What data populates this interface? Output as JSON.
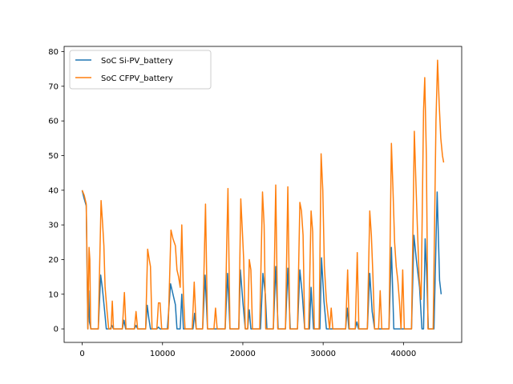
{
  "chart_data": {
    "type": "line",
    "title": "",
    "xlabel": "",
    "ylabel": "",
    "xlim": [
      -2250,
      47250
    ],
    "ylim": [
      -3.9,
      81.5
    ],
    "xticks": [
      0,
      10000,
      20000,
      30000,
      40000
    ],
    "yticks": [
      0,
      10,
      20,
      30,
      40,
      50,
      60,
      70,
      80
    ],
    "grid": false,
    "legend_position": "top-left",
    "series": [
      {
        "name": "SoC Si-PV_battery",
        "color": "#1f77b4",
        "points": [
          [
            0,
            40
          ],
          [
            200,
            38
          ],
          [
            500,
            35.5
          ],
          [
            700,
            0
          ],
          [
            800,
            11
          ],
          [
            900,
            2
          ],
          [
            1100,
            0
          ],
          [
            2000,
            0
          ],
          [
            2300,
            15.5
          ],
          [
            2500,
            12
          ],
          [
            2800,
            5
          ],
          [
            3000,
            0
          ],
          [
            3500,
            0
          ],
          [
            3700,
            1
          ],
          [
            3900,
            0
          ],
          [
            5000,
            0
          ],
          [
            5200,
            2.5
          ],
          [
            5400,
            0
          ],
          [
            6500,
            0
          ],
          [
            6700,
            1
          ],
          [
            6900,
            0
          ],
          [
            7900,
            0
          ],
          [
            8100,
            6.8
          ],
          [
            8300,
            3
          ],
          [
            8500,
            0
          ],
          [
            9300,
            0
          ],
          [
            9500,
            0.5
          ],
          [
            9700,
            0
          ],
          [
            10600,
            0
          ],
          [
            11000,
            13
          ],
          [
            11300,
            10
          ],
          [
            11600,
            7
          ],
          [
            11800,
            0
          ],
          [
            12200,
            0
          ],
          [
            12400,
            10
          ],
          [
            12600,
            0
          ],
          [
            13800,
            0
          ],
          [
            14000,
            4.5
          ],
          [
            14200,
            0
          ],
          [
            15000,
            0
          ],
          [
            15300,
            15.5
          ],
          [
            15600,
            0
          ],
          [
            17800,
            0
          ],
          [
            18100,
            16
          ],
          [
            18400,
            0
          ],
          [
            19500,
            0
          ],
          [
            19700,
            17
          ],
          [
            20000,
            8
          ],
          [
            20300,
            0
          ],
          [
            20600,
            0
          ],
          [
            20800,
            5.5
          ],
          [
            21000,
            0
          ],
          [
            22200,
            0
          ],
          [
            22500,
            16
          ],
          [
            22800,
            10
          ],
          [
            23000,
            0
          ],
          [
            23800,
            0
          ],
          [
            24100,
            18
          ],
          [
            24400,
            0
          ],
          [
            25300,
            0
          ],
          [
            25600,
            17.5
          ],
          [
            25900,
            0
          ],
          [
            26800,
            0
          ],
          [
            27100,
            17
          ],
          [
            27400,
            10
          ],
          [
            27700,
            0
          ],
          [
            28300,
            0
          ],
          [
            28500,
            12
          ],
          [
            28800,
            0
          ],
          [
            29600,
            0
          ],
          [
            29800,
            20.5
          ],
          [
            30100,
            8
          ],
          [
            30400,
            0
          ],
          [
            32800,
            0
          ],
          [
            33000,
            6
          ],
          [
            33200,
            0
          ],
          [
            34000,
            0
          ],
          [
            34200,
            2
          ],
          [
            34400,
            0
          ],
          [
            35500,
            0
          ],
          [
            35800,
            16
          ],
          [
            36100,
            5
          ],
          [
            36400,
            0
          ],
          [
            38200,
            0
          ],
          [
            38500,
            23.5
          ],
          [
            38800,
            0
          ],
          [
            41000,
            0
          ],
          [
            41300,
            27
          ],
          [
            41600,
            20
          ],
          [
            42000,
            12
          ],
          [
            42300,
            0
          ],
          [
            42500,
            0
          ],
          [
            42700,
            26
          ],
          [
            42900,
            15
          ],
          [
            43100,
            0
          ],
          [
            43800,
            0
          ],
          [
            44200,
            39.5
          ],
          [
            44500,
            14
          ],
          [
            44700,
            10
          ]
        ]
      },
      {
        "name": "SoC CFPV_battery",
        "color": "#ff7f0e",
        "points": [
          [
            0,
            40
          ],
          [
            250,
            38.5
          ],
          [
            500,
            36
          ],
          [
            600,
            20
          ],
          [
            700,
            0
          ],
          [
            850,
            23.5
          ],
          [
            950,
            20
          ],
          [
            1050,
            0
          ],
          [
            2000,
            0
          ],
          [
            2350,
            37
          ],
          [
            2550,
            30
          ],
          [
            2700,
            24
          ],
          [
            2850,
            12
          ],
          [
            3100,
            5
          ],
          [
            3300,
            0
          ],
          [
            3600,
            0
          ],
          [
            3750,
            8
          ],
          [
            3900,
            0
          ],
          [
            5000,
            0
          ],
          [
            5250,
            10.5
          ],
          [
            5450,
            0
          ],
          [
            6500,
            0
          ],
          [
            6700,
            5
          ],
          [
            6900,
            0
          ],
          [
            7900,
            0
          ],
          [
            8150,
            23
          ],
          [
            8350,
            20
          ],
          [
            8500,
            18
          ],
          [
            8700,
            0
          ],
          [
            9300,
            0
          ],
          [
            9500,
            7.5
          ],
          [
            9700,
            7.5
          ],
          [
            9900,
            0
          ],
          [
            10700,
            0
          ],
          [
            11050,
            28.5
          ],
          [
            11300,
            26
          ],
          [
            11600,
            24
          ],
          [
            11800,
            17
          ],
          [
            12000,
            15
          ],
          [
            12200,
            12
          ],
          [
            12400,
            30
          ],
          [
            12600,
            10
          ],
          [
            12800,
            0
          ],
          [
            13700,
            0
          ],
          [
            13950,
            13.5
          ],
          [
            14200,
            0
          ],
          [
            15000,
            0
          ],
          [
            15350,
            36
          ],
          [
            15600,
            0
          ],
          [
            16400,
            0
          ],
          [
            16600,
            6
          ],
          [
            16800,
            0
          ],
          [
            17800,
            0
          ],
          [
            18000,
            25
          ],
          [
            18150,
            40.5
          ],
          [
            18400,
            0
          ],
          [
            19500,
            0
          ],
          [
            19750,
            37.5
          ],
          [
            19950,
            28
          ],
          [
            20100,
            20
          ],
          [
            20300,
            0
          ],
          [
            20600,
            0
          ],
          [
            20800,
            20
          ],
          [
            21000,
            17
          ],
          [
            21200,
            0
          ],
          [
            22100,
            0
          ],
          [
            22450,
            39.5
          ],
          [
            22650,
            30
          ],
          [
            22850,
            0
          ],
          [
            23800,
            0
          ],
          [
            24100,
            41.5
          ],
          [
            24350,
            0
          ],
          [
            25300,
            0
          ],
          [
            25600,
            41
          ],
          [
            25850,
            0
          ],
          [
            26800,
            0
          ],
          [
            27100,
            36.5
          ],
          [
            27300,
            34
          ],
          [
            27500,
            27
          ],
          [
            27700,
            0
          ],
          [
            28200,
            0
          ],
          [
            28500,
            34
          ],
          [
            28700,
            28
          ],
          [
            28900,
            0
          ],
          [
            29500,
            0
          ],
          [
            29750,
            50.5
          ],
          [
            29950,
            40
          ],
          [
            30150,
            18
          ],
          [
            30400,
            8
          ],
          [
            30600,
            4
          ],
          [
            30800,
            0
          ],
          [
            31000,
            6
          ],
          [
            31200,
            0
          ],
          [
            32800,
            0
          ],
          [
            33050,
            17
          ],
          [
            33250,
            0
          ],
          [
            34000,
            0
          ],
          [
            34250,
            22
          ],
          [
            34450,
            0
          ],
          [
            35500,
            0
          ],
          [
            35800,
            34
          ],
          [
            36000,
            27
          ],
          [
            36200,
            15
          ],
          [
            36400,
            0
          ],
          [
            36900,
            0
          ],
          [
            37100,
            11
          ],
          [
            37300,
            0
          ],
          [
            38200,
            0
          ],
          [
            38500,
            53.5
          ],
          [
            38700,
            40
          ],
          [
            38900,
            25
          ],
          [
            39100,
            18
          ],
          [
            39300,
            14
          ],
          [
            39500,
            8
          ],
          [
            39700,
            0
          ],
          [
            39900,
            17
          ],
          [
            40100,
            0
          ],
          [
            41000,
            0
          ],
          [
            41350,
            57
          ],
          [
            41550,
            42
          ],
          [
            41750,
            28
          ],
          [
            41950,
            15
          ],
          [
            42200,
            8.5
          ],
          [
            42500,
            63
          ],
          [
            42650,
            72.5
          ],
          [
            42850,
            50
          ],
          [
            43050,
            0
          ],
          [
            43700,
            0
          ],
          [
            44050,
            60
          ],
          [
            44250,
            77.5
          ],
          [
            44450,
            65
          ],
          [
            44650,
            55
          ],
          [
            44850,
            50
          ],
          [
            45000,
            48
          ]
        ]
      }
    ]
  }
}
